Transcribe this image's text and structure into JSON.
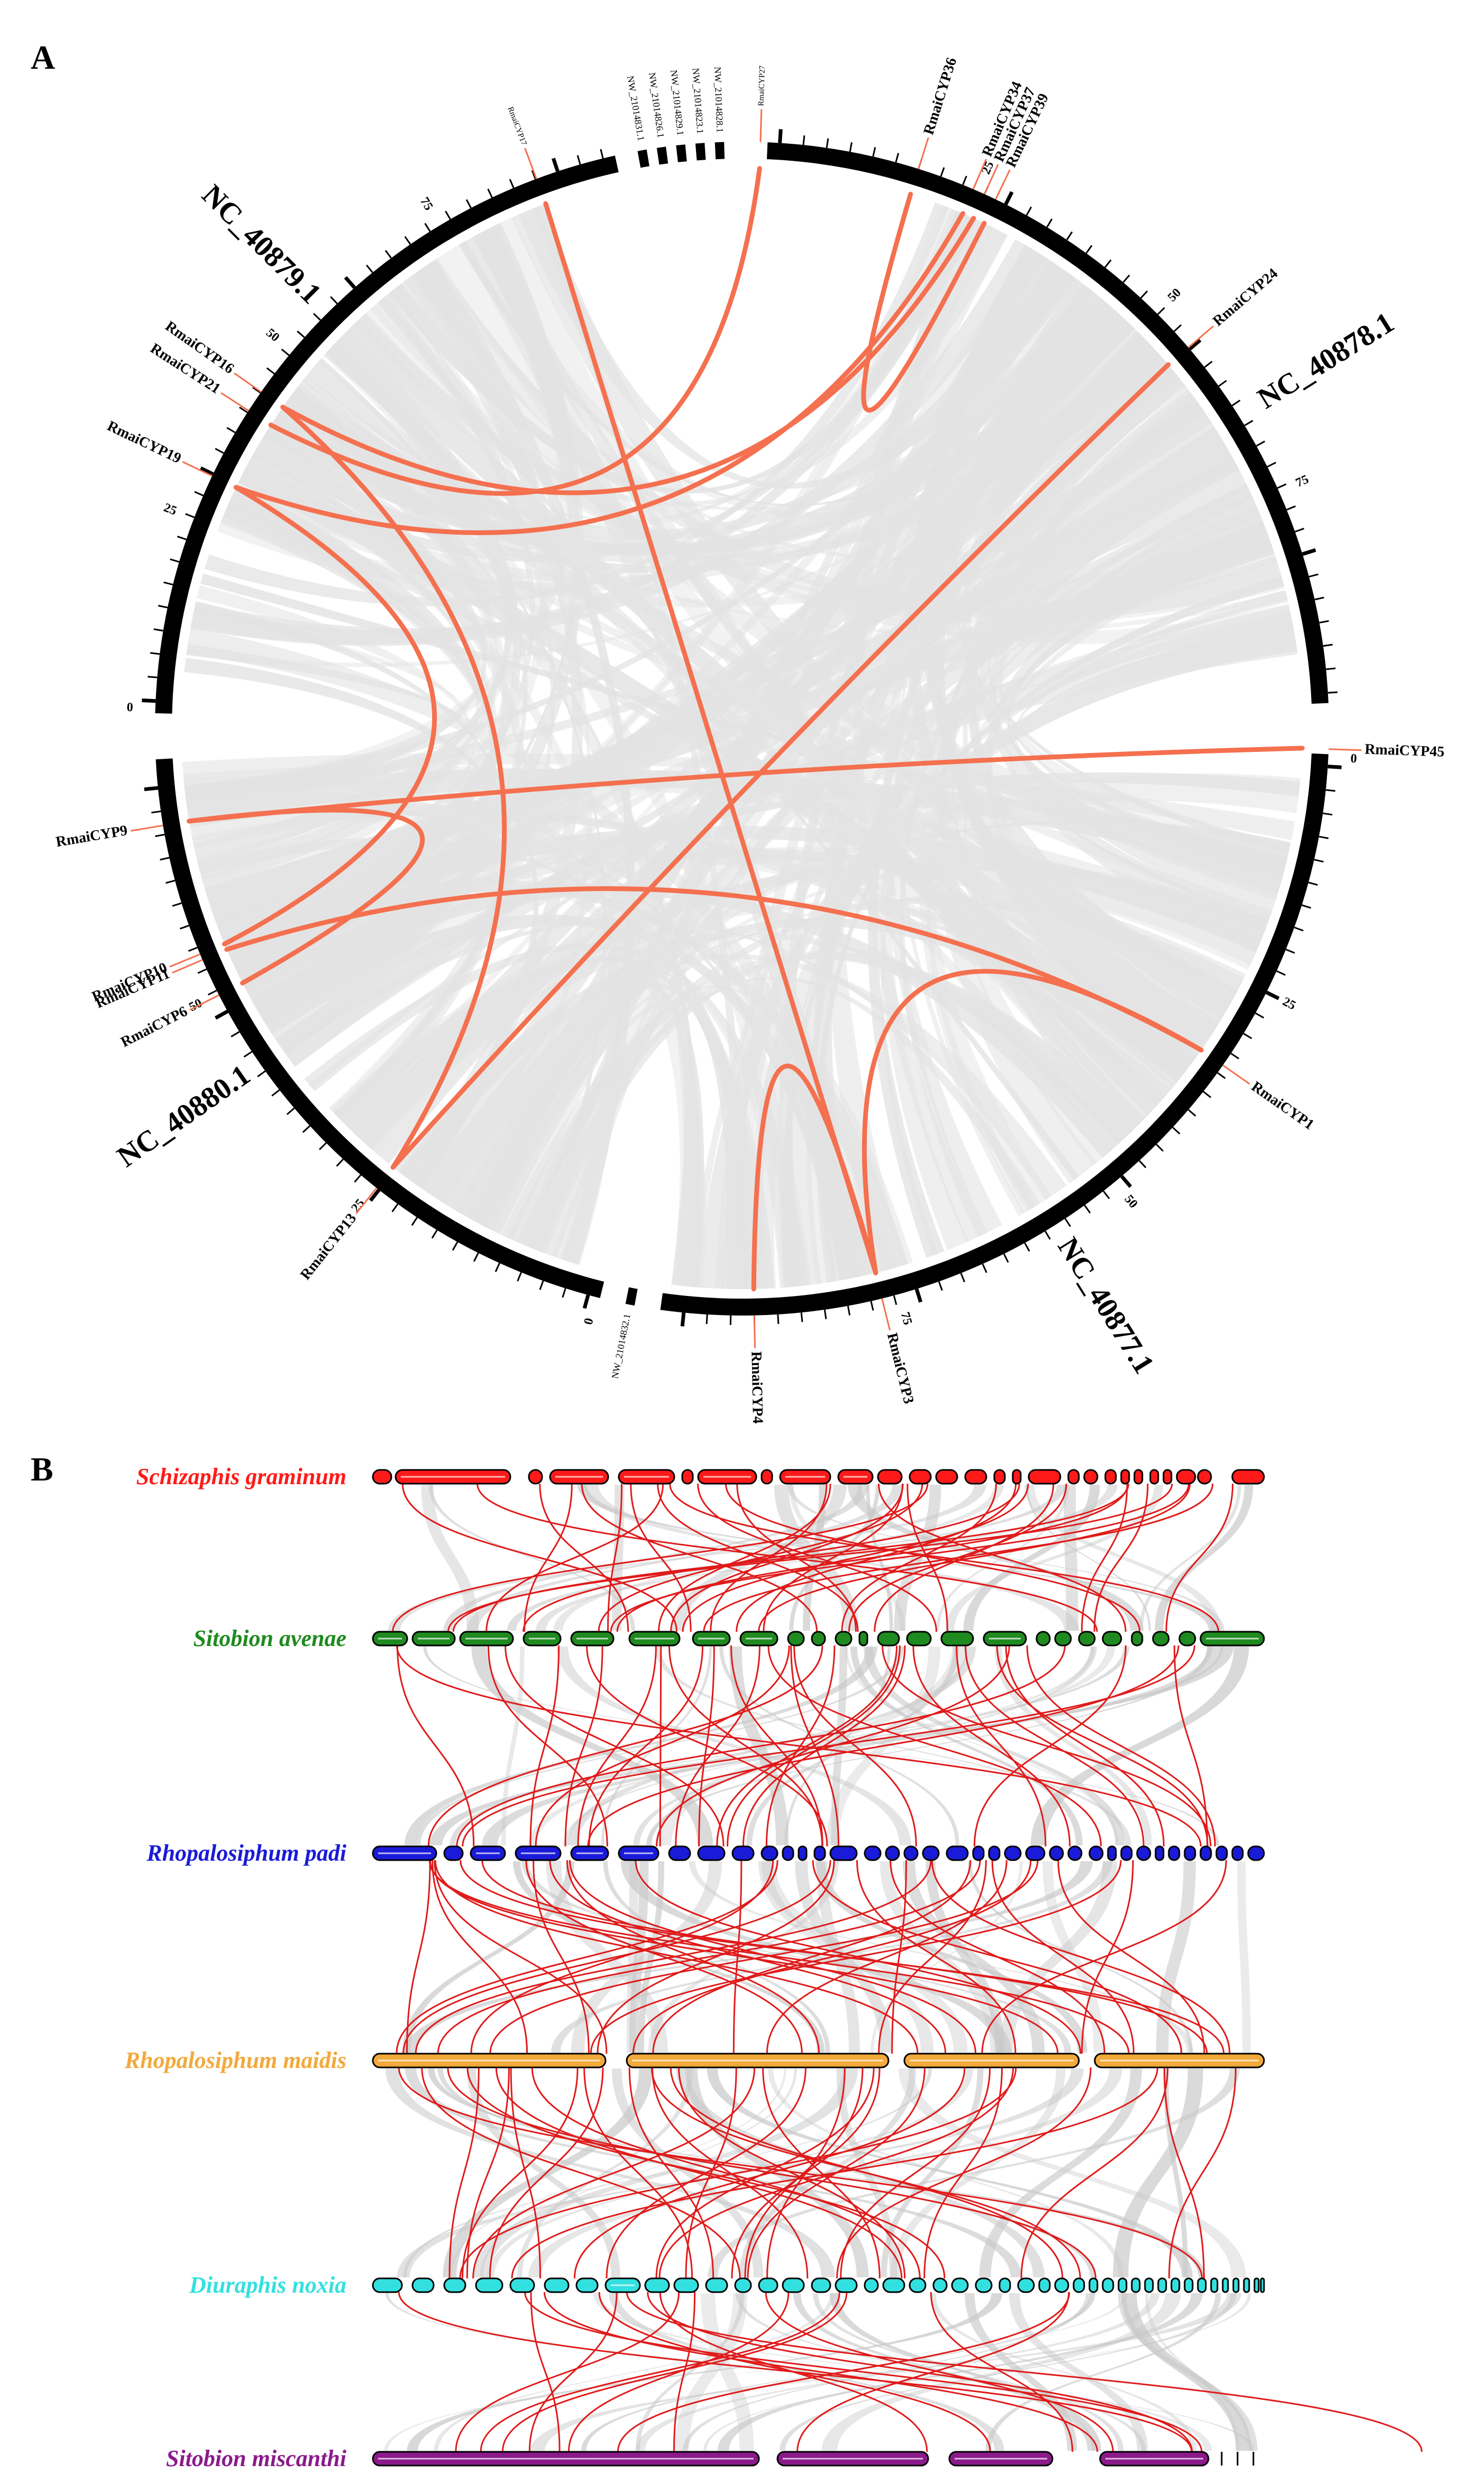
{
  "panel_a": {
    "letter": "A",
    "colors": {
      "ideogram": "#000000",
      "background_links": "#e3e3e3",
      "highlight_links": "#f4704f",
      "gene_ticks": "#f4704f"
    },
    "chromosomes": [
      {
        "name": "NC_40878.1",
        "tick_labels": [
          "25",
          "50",
          "75"
        ]
      },
      {
        "name": "NC_40877.1",
        "tick_labels": [
          "0",
          "25",
          "50",
          "75"
        ]
      },
      {
        "name": "NC_40880.1",
        "tick_labels": [
          "0",
          "25",
          "50"
        ]
      },
      {
        "name": "NC_40879.1",
        "tick_labels": [
          "0",
          "25",
          "50",
          "75"
        ]
      }
    ],
    "scaffolds": [
      "NW_21014831.1",
      "NW_21014826.1",
      "NW_21014829.1",
      "NW_21014823.1",
      "NW_21014828.1",
      "NW_21014832.1"
    ],
    "genes": [
      {
        "name": "RmaiCYP27",
        "small": true
      },
      {
        "name": "RmaiCYP36"
      },
      {
        "name": "RmaiCYP34"
      },
      {
        "name": "RmaiCYP37"
      },
      {
        "name": "RmaiCYP39"
      },
      {
        "name": "RmaiCYP24"
      },
      {
        "name": "RmaiCYP45"
      },
      {
        "name": "RmaiCYP1"
      },
      {
        "name": "RmaiCYP3"
      },
      {
        "name": "RmaiCYP4"
      },
      {
        "name": "RmaiCYP13"
      },
      {
        "name": "RmaiCYP6"
      },
      {
        "name": "RmaiCYP11"
      },
      {
        "name": "RmaiCYP10"
      },
      {
        "name": "RmaiCYP9"
      },
      {
        "name": "RmaiCYP19"
      },
      {
        "name": "RmaiCYP21"
      },
      {
        "name": "RmaiCYP16"
      },
      {
        "name": "RmaiCYP17",
        "small": true
      }
    ]
  },
  "panel_b": {
    "letter": "B",
    "colors": {
      "links": "#e01a1a",
      "background_links": "#c8c8c8"
    },
    "species": [
      {
        "name": "Schizaphis graminum",
        "color": "#ff1a1a"
      },
      {
        "name": "Sitobion avenae",
        "color": "#1f8a1f"
      },
      {
        "name": "Rhopalosiphum padi",
        "color": "#1a1ad9"
      },
      {
        "name": "Rhopalosiphum maidis",
        "color": "#f2a93b"
      },
      {
        "name": "Diuraphis noxia",
        "color": "#33e0e0"
      },
      {
        "name": "Sitobion miscanthi",
        "color": "#8b1a8b"
      }
    ]
  }
}
